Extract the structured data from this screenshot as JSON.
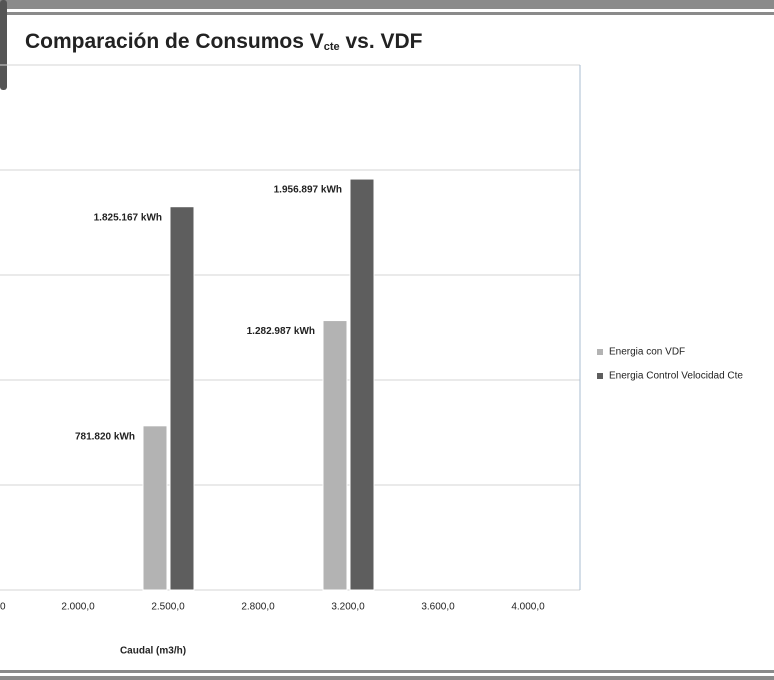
{
  "chart_data": {
    "type": "bar",
    "title": {
      "main": "Comparación de Consumos V",
      "subscript": "cte",
      "rest": " vs. VDF"
    },
    "x_label": "Caudal (m3/h)",
    "categories": [
      "0",
      "2.000,0",
      "2.500,0",
      "2.800,0",
      "3.200,0",
      "3.600,0",
      "4.000,0"
    ],
    "series": [
      {
        "name": "Energia con VDF",
        "color": "#b3b3b3",
        "values": [
          null,
          null,
          781820,
          null,
          1282987,
          null,
          null
        ],
        "value_labels": [
          null,
          null,
          "781.820 kWh",
          null,
          "1.282.987 kWh",
          null,
          null
        ]
      },
      {
        "name": "Energia Control Velocidad Cte",
        "color": "#5e5e5e",
        "values": [
          null,
          null,
          1825167,
          null,
          1956897,
          null,
          null
        ],
        "value_labels": [
          null,
          null,
          "1.825.167 kWh",
          null,
          "1.956.897 kWh",
          null,
          null
        ]
      }
    ],
    "ylim": [
      0,
      2500000
    ],
    "yticks": [
      0,
      500000,
      1000000,
      1500000,
      2000000,
      2500000
    ],
    "grid": true,
    "legend": "right"
  }
}
